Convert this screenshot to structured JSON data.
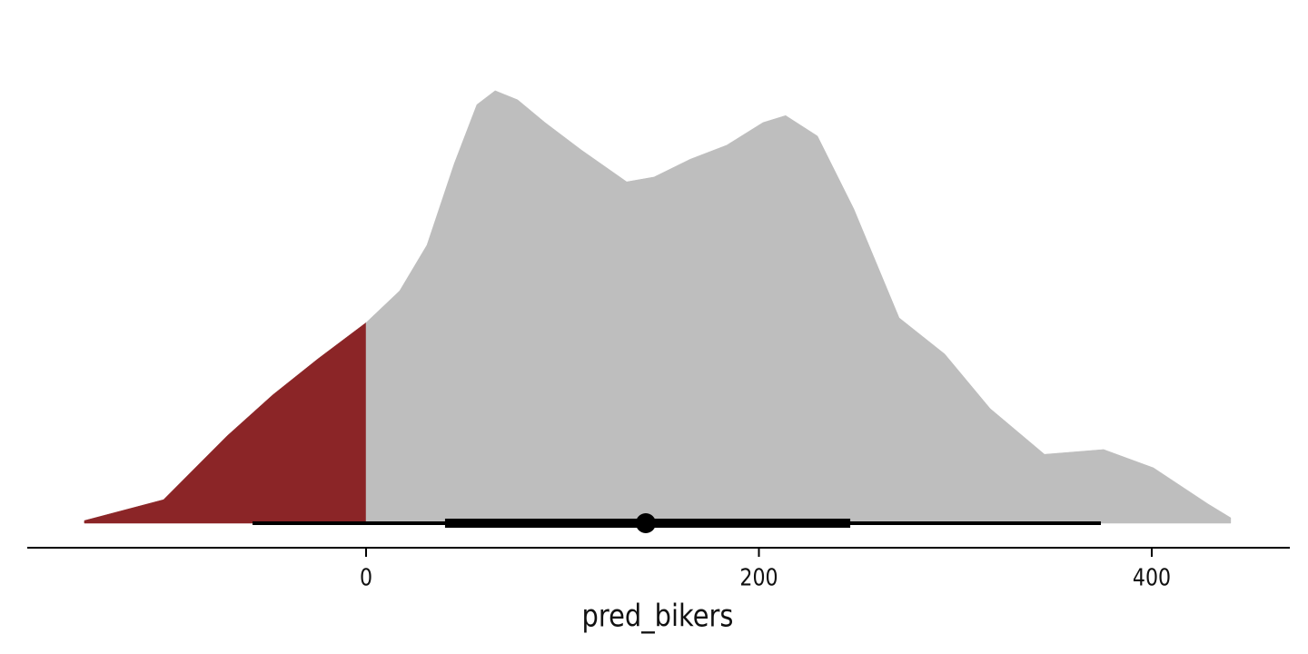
{
  "chart_data": {
    "type": "density",
    "x_label": "pred_bikers",
    "xlim": [
      -172.5,
      470.3
    ],
    "xticks": [
      0,
      200,
      400
    ],
    "ylim": [
      0,
      1
    ],
    "areas": [
      {
        "color": "#8b2527",
        "x": [
          -143.4,
          -103.1,
          -70.8,
          -47.6,
          -24.5,
          0
        ],
        "values": [
          0.006,
          0.054,
          0.2,
          0.294,
          0.377,
          0.46
        ]
      },
      {
        "color": "#bebebe",
        "x": [
          0,
          17.1,
          31,
          44.9,
          56.4,
          65.7,
          77.2,
          91.1,
          109.6,
          132.7,
          146.6,
          165.1,
          183.6,
          202.1,
          213.6,
          229.8,
          248.3,
          271.4,
          294.6,
          317.7,
          345.4,
          375.5,
          400.9,
          428.7,
          440.2
        ],
        "values": [
          0.46,
          0.533,
          0.638,
          0.825,
          0.96,
          0.992,
          0.971,
          0.919,
          0.856,
          0.783,
          0.794,
          0.835,
          0.867,
          0.919,
          0.935,
          0.888,
          0.721,
          0.471,
          0.388,
          0.263,
          0.158,
          0.169,
          0.127,
          0.044,
          0.0125
        ]
      }
    ],
    "interval": {
      "color": "#000000",
      "point": 142.4,
      "inner": [
        40.2,
        246.5
      ],
      "outer": [
        -57.8,
        374.1
      ]
    }
  }
}
